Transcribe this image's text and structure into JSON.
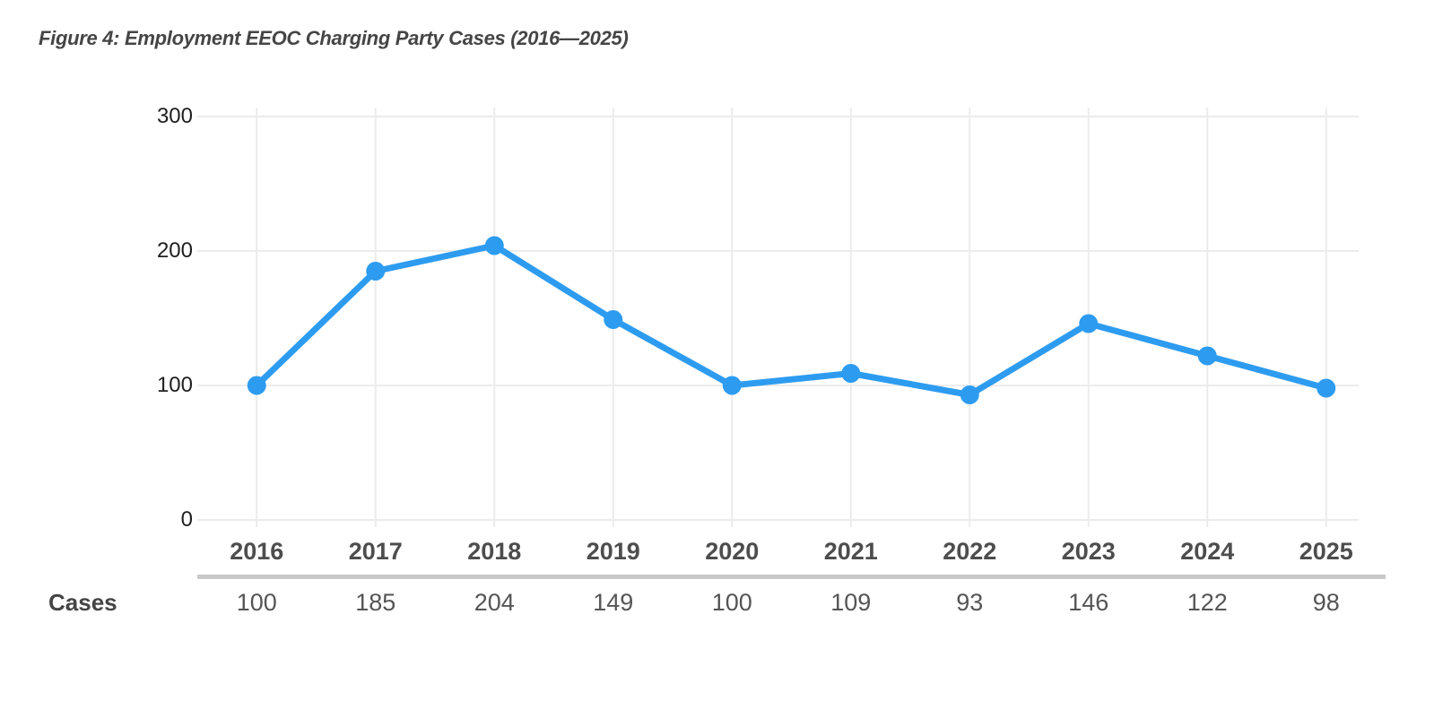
{
  "figure": {
    "title": "Figure 4: Employment EEOC Charging Party Cases (2016—2025)"
  },
  "chart_data": {
    "type": "line",
    "title": "Figure 4: Employment EEOC Charging Party Cases (2016—2025)",
    "categories": [
      "2016",
      "2017",
      "2018",
      "2019",
      "2020",
      "2021",
      "2022",
      "2023",
      "2024",
      "2025"
    ],
    "series": [
      {
        "name": "Cases",
        "values": [
          100,
          185,
          204,
          149,
          100,
          109,
          93,
          146,
          122,
          98
        ]
      }
    ],
    "xlabel": "",
    "ylabel": "",
    "ylim": [
      0,
      300
    ],
    "yticks": [
      0,
      100,
      200,
      300
    ],
    "grid": true,
    "legend_position": "none",
    "line_color": "#2D9CF0",
    "point_color": "#2D9CF0",
    "gridline_color": "#ECECEC"
  },
  "table": {
    "row_label": "Cases",
    "divider_color": "#C9C9C9"
  }
}
